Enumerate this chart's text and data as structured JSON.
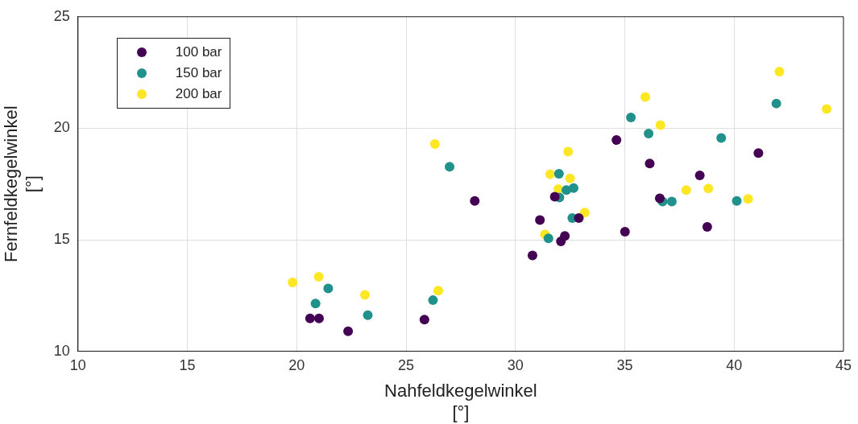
{
  "chart_data": {
    "type": "scatter",
    "xlabel": "Nahfeldkegelwinkel\n[°]",
    "ylabel": "Fernfeldkegelwinkel\n[°]",
    "xlim": [
      10,
      45
    ],
    "xticks": [
      10,
      15,
      20,
      25,
      30,
      35,
      40,
      45
    ],
    "ylim": [
      10,
      25
    ],
    "yticks": [
      10,
      15,
      20,
      25
    ],
    "grid": true,
    "legend": "top left",
    "marker": "circle",
    "series": [
      {
        "name": "100 bar",
        "color": "#440154",
        "x": [
          20.61,
          21.02,
          22.35,
          25.84,
          28.14,
          30.78,
          31.12,
          31.8,
          32.08,
          32.26,
          32.9,
          34.62,
          35.01,
          36.14,
          36.6,
          38.43,
          38.77,
          41.11
        ],
        "values": [
          11.47,
          11.47,
          10.9,
          11.42,
          16.74,
          14.3,
          15.88,
          16.93,
          14.93,
          15.17,
          15.97,
          19.47,
          15.36,
          18.42,
          16.86,
          17.89,
          15.58,
          18.89
        ]
      },
      {
        "name": "150 bar",
        "color": "#21918c",
        "x": [
          20.86,
          21.44,
          23.25,
          26.23,
          26.99,
          31.51,
          31.99,
          32.01,
          32.33,
          32.66,
          32.6,
          35.28,
          36.09,
          36.73,
          37.15,
          39.41,
          40.12,
          41.93
        ],
        "values": [
          12.14,
          12.82,
          11.62,
          12.29,
          18.27,
          15.06,
          17.96,
          16.89,
          17.23,
          17.32,
          15.97,
          20.48,
          19.76,
          16.71,
          16.71,
          19.56,
          16.74,
          21.11
        ]
      },
      {
        "name": "200 bar",
        "color": "#fde725",
        "x": [
          19.81,
          21.01,
          23.12,
          26.32,
          26.47,
          31.35,
          31.59,
          31.96,
          32.41,
          32.5,
          33.17,
          35.94,
          36.63,
          37.81,
          38.82,
          40.64,
          42.07,
          44.23
        ],
        "values": [
          13.09,
          13.34,
          12.53,
          19.29,
          12.72,
          15.24,
          17.94,
          17.27,
          18.95,
          17.75,
          16.22,
          21.4,
          20.14,
          17.23,
          17.3,
          16.83,
          22.54,
          20.86
        ]
      }
    ]
  }
}
